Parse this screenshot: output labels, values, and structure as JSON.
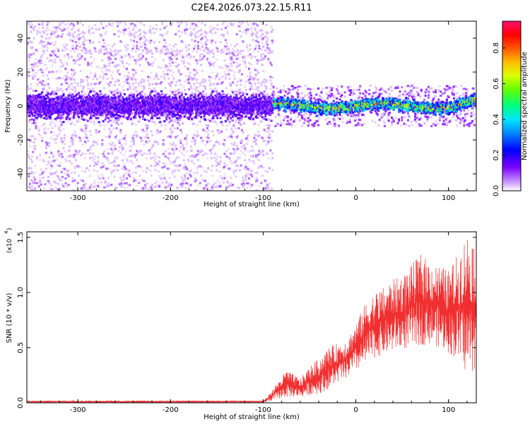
{
  "title": "C2E4.2026.073.22.15.R11",
  "chart_data": [
    {
      "type": "heatmap",
      "xlabel": "Height of straight line (km)",
      "ylabel": "Frequency (Hz)",
      "xlim": [
        -355,
        130
      ],
      "ylim": [
        -50,
        50
      ],
      "x_ticks": [
        -300,
        -200,
        -100,
        0,
        100
      ],
      "y_ticks": [
        -40,
        -20,
        0,
        20,
        40
      ],
      "grid": false,
      "colorbar": {
        "label": "Normalized spectral amplitude",
        "range": [
          0.0,
          0.95
        ],
        "ticks": [
          0.0,
          0.2,
          0.4,
          0.6,
          0.8
        ],
        "colors": [
          "#f0e6ff",
          "#9933ff",
          "#0000ff",
          "#00ccff",
          "#00ff66",
          "#ccff00",
          "#ffaa00",
          "#ff0000",
          "#ff1493"
        ]
      },
      "regions": [
        {
          "x_range": [
            -355,
            -90
          ],
          "band_halfwidth_hz": 10,
          "diffuse_halfwidth_hz": 50,
          "amplitude": 0.1
        },
        {
          "x_range": [
            -90,
            130
          ],
          "band_halfwidth_hz": 5,
          "diffuse_halfwidth_hz": 12,
          "amplitude": 0.5
        }
      ]
    },
    {
      "type": "line",
      "xlabel": "Height of straight line (km)",
      "ylabel": "SNR (10 * v/v)",
      "y_multiplier": "(x10",
      "y_exponent": "4",
      "xlim": [
        -355,
        130
      ],
      "ylim": [
        0,
        1.55
      ],
      "x_ticks": [
        -300,
        -200,
        -100,
        0,
        100
      ],
      "y_ticks": [
        0.0,
        0.5,
        1.0,
        1.5
      ],
      "series_color": "#f03030",
      "envelope": {
        "x": [
          -355,
          -100,
          -95,
          -85,
          -75,
          -60,
          -50,
          -40,
          -30,
          -20,
          -10,
          0,
          10,
          20,
          30,
          40,
          50,
          60,
          70,
          80,
          90,
          100,
          110,
          120,
          130
        ],
        "y_low": [
          0.0,
          0.0,
          0.01,
          0.03,
          0.05,
          0.05,
          0.07,
          0.08,
          0.12,
          0.18,
          0.22,
          0.28,
          0.34,
          0.4,
          0.44,
          0.46,
          0.48,
          0.5,
          0.52,
          0.53,
          0.5,
          0.45,
          0.38,
          0.25,
          0.3
        ],
        "y_high": [
          0.02,
          0.02,
          0.06,
          0.18,
          0.3,
          0.22,
          0.33,
          0.4,
          0.5,
          0.54,
          0.58,
          0.72,
          0.9,
          1.0,
          1.05,
          1.12,
          1.15,
          1.25,
          1.35,
          1.28,
          1.25,
          1.2,
          1.35,
          1.55,
          1.48
        ]
      }
    }
  ]
}
